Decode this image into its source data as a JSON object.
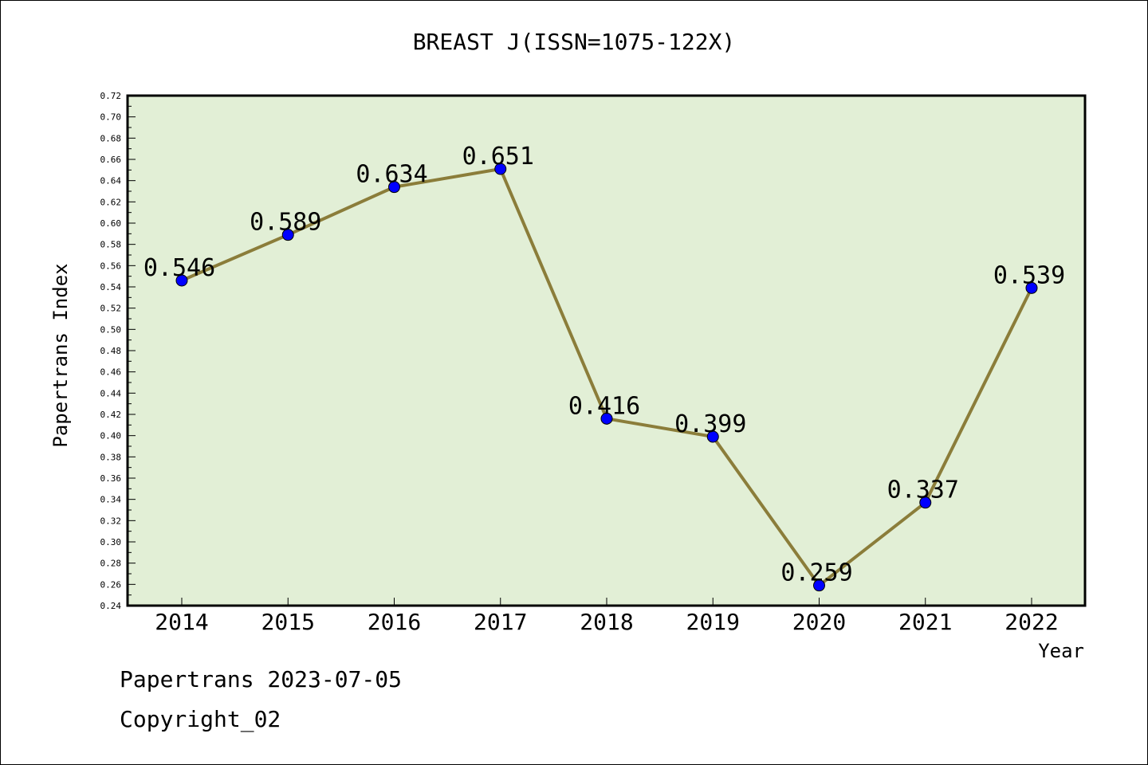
{
  "footer": {
    "date_line": "Papertrans 2023-07-05",
    "copyright": "Copyright_02"
  },
  "chart_data": {
    "type": "line",
    "title": "BREAST J(ISSN=1075-122X)",
    "xlabel": "Year",
    "ylabel": "Papertrans Index",
    "categories": [
      "2014",
      "2015",
      "2016",
      "2017",
      "2018",
      "2019",
      "2020",
      "2021",
      "2022"
    ],
    "values": [
      0.546,
      0.589,
      0.634,
      0.651,
      0.416,
      0.399,
      0.259,
      0.337,
      0.539
    ],
    "data_labels": [
      "0.546",
      "0.589",
      "0.634",
      "0.651",
      "0.416",
      "0.399",
      "0.259",
      "0.337",
      "0.539"
    ],
    "ylim": [
      0.24,
      0.72
    ],
    "yticks": [
      "0.24",
      "0.26",
      "0.28",
      "0.30",
      "0.32",
      "0.34",
      "0.36",
      "0.38",
      "0.40",
      "0.42",
      "0.44",
      "0.46",
      "0.48",
      "0.50",
      "0.52",
      "0.54",
      "0.56",
      "0.58",
      "0.60",
      "0.62",
      "0.64",
      "0.66",
      "0.68",
      "0.70",
      "0.72"
    ],
    "grid": false,
    "colors": {
      "plot_background": "#e2efd6",
      "line": "#8b7d3a",
      "marker": "#0000ff"
    }
  }
}
